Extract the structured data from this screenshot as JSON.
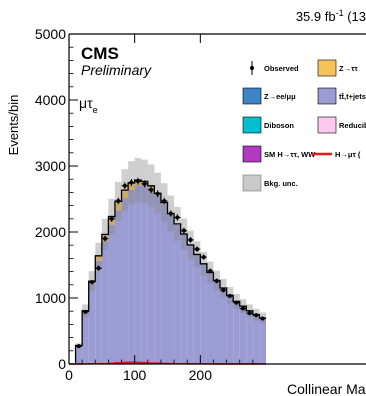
{
  "header": {
    "lumi": "35.9 fb",
    "lumi_sup": "-1",
    "lumi_rest": " (13"
  },
  "labels": {
    "cms": "CMS",
    "preliminary": "Preliminary",
    "channel_main": "μτ",
    "channel_sub": "e"
  },
  "chart_data": {
    "type": "bar",
    "title": "",
    "xlabel": "Collinear Mass",
    "ylabel": "Events/bin",
    "xlim": [
      0,
      300
    ],
    "ylim": [
      0,
      5000
    ],
    "x_ticks": [
      "0",
      "100",
      "200"
    ],
    "y_ticks": [
      "0",
      "1000",
      "2000",
      "3000",
      "4000",
      "5000"
    ],
    "bin_edges": [
      0,
      10,
      20,
      30,
      40,
      50,
      60,
      70,
      80,
      90,
      100,
      110,
      120,
      130,
      140,
      150,
      160,
      170,
      180,
      190,
      200,
      210,
      220,
      230,
      240,
      250,
      260,
      270,
      280,
      290,
      300
    ],
    "stack": [
      {
        "name": "Z→ee/μμ",
        "color": "#3d85c6",
        "values": [
          0,
          3,
          7,
          9,
          11,
          12,
          13,
          13,
          13,
          12,
          12,
          11,
          10,
          10,
          9,
          8,
          7,
          7,
          6,
          5,
          5,
          4,
          4,
          3,
          3,
          3,
          2,
          2,
          2,
          2
        ]
      },
      {
        "name": "Diboson",
        "color": "#00c0d0",
        "values": [
          0,
          1,
          2,
          3,
          3,
          4,
          4,
          4,
          4,
          4,
          4,
          4,
          4,
          3,
          3,
          3,
          3,
          3,
          2,
          2,
          2,
          2,
          2,
          2,
          2,
          1,
          1,
          1,
          1,
          1
        ]
      },
      {
        "name": "SM H→ττ, WW",
        "color": "#b03ac0",
        "values": [
          0,
          0,
          1,
          1,
          1,
          2,
          2,
          3,
          3,
          3,
          3,
          3,
          3,
          2,
          2,
          2,
          2,
          2,
          1,
          1,
          1,
          1,
          1,
          1,
          1,
          1,
          0,
          0,
          0,
          0
        ]
      },
      {
        "name": "Reducible",
        "color": "#ffc8ee",
        "values": [
          0,
          3,
          6,
          8,
          9,
          10,
          10,
          10,
          10,
          9,
          9,
          8,
          8,
          7,
          7,
          6,
          6,
          5,
          5,
          4,
          4,
          4,
          3,
          3,
          3,
          2,
          2,
          2,
          2,
          2
        ]
      },
      {
        "name": "tt̄,t+jets",
        "color": "#9c9cd4",
        "values": [
          0,
          270,
          770,
          1190,
          1540,
          1830,
          2080,
          2300,
          2480,
          2610,
          2680,
          2680,
          2630,
          2530,
          2400,
          2240,
          2090,
          1940,
          1780,
          1640,
          1500,
          1370,
          1250,
          1140,
          1030,
          940,
          870,
          800,
          740,
          690
        ]
      },
      {
        "name": "Z→ττ",
        "color": "#f8c25a",
        "values": [
          0,
          3,
          20,
          45,
          75,
          105,
          125,
          135,
          125,
          105,
          80,
          60,
          45,
          35,
          25,
          20,
          15,
          12,
          10,
          8,
          6,
          5,
          4,
          3,
          3,
          2,
          2,
          2,
          2,
          2
        ]
      }
    ],
    "signal": {
      "name": "H→μτ (",
      "color": "#e21a1a",
      "values": [
        0,
        0,
        2,
        4,
        6,
        9,
        12,
        18,
        24,
        28,
        25,
        20,
        15,
        12,
        9,
        7,
        5,
        4,
        3,
        2,
        2,
        2,
        1,
        1,
        1,
        1,
        1,
        1,
        1,
        0
      ]
    },
    "observed": {
      "name": "Observed",
      "x": [
        15,
        25,
        35,
        45,
        55,
        65,
        75,
        85,
        95,
        105,
        115,
        125,
        135,
        145,
        155,
        165,
        175,
        185,
        195,
        205,
        215,
        225,
        235,
        245,
        255,
        265,
        275,
        285,
        295
      ],
      "y": [
        270,
        790,
        1240,
        1450,
        1900,
        2200,
        2470,
        2700,
        2750,
        2770,
        2730,
        2640,
        2580,
        2470,
        2280,
        2220,
        2020,
        1880,
        1740,
        1620,
        1410,
        1260,
        1120,
        1030,
        930,
        840,
        770,
        740,
        690
      ]
    },
    "uncertainty": {
      "name": "Bkg. unc.",
      "relative": 0.12
    },
    "legend": {
      "placement": "top-right",
      "entries": [
        "Observed",
        "Z→ττ",
        "Z→ee/μμ",
        "tt̄,t+jets",
        "Diboson",
        "Reducibl",
        "SM H→ττ, WW",
        "H→μτ (",
        "Bkg. unc."
      ]
    }
  }
}
